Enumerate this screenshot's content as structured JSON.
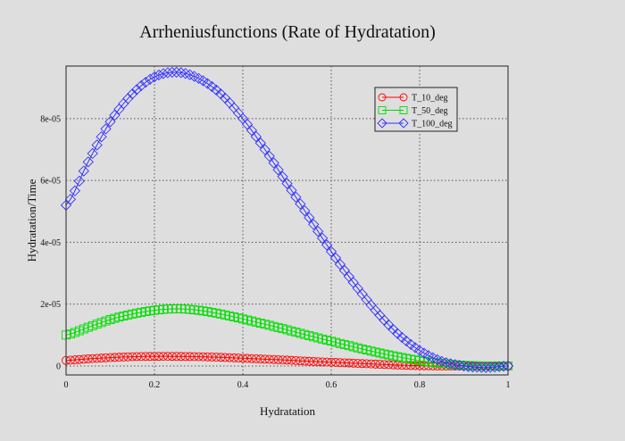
{
  "chart_data": {
    "type": "line",
    "title": "Arrheniusfunctions (Rate of Hydratation)",
    "xlabel": "Hydratation",
    "ylabel": "Hydratation/Time",
    "xlim": [
      0,
      1
    ],
    "ylim": [
      -2.9e-06,
      9.7e-05
    ],
    "grid": true,
    "legend_position": "top-right",
    "x_ticks": [
      {
        "value": 0,
        "label": "0"
      },
      {
        "value": 0.2,
        "label": "0.2"
      },
      {
        "value": 0.4,
        "label": "0.4"
      },
      {
        "value": 0.6,
        "label": "0.6"
      },
      {
        "value": 0.8,
        "label": "0.8"
      },
      {
        "value": 1,
        "label": "1"
      }
    ],
    "y_ticks": [
      {
        "value": 0,
        "label": "0"
      },
      {
        "value": 2e-05,
        "label": "2e-05"
      },
      {
        "value": 4e-05,
        "label": "4e-05"
      },
      {
        "value": 6e-05,
        "label": "6e-05"
      },
      {
        "value": 8e-05,
        "label": "8e-05"
      }
    ],
    "x": [
      0,
      0.05,
      0.1,
      0.15,
      0.2,
      0.25,
      0.3,
      0.35,
      0.4,
      0.45,
      0.5,
      0.55,
      0.6,
      0.65,
      0.7,
      0.75,
      0.8,
      0.85,
      0.9,
      0.95,
      1
    ],
    "series": [
      {
        "name": "T_10_deg",
        "color": "#ff0000",
        "marker": "circle",
        "values": [
          1.8e-06,
          2.3e-06,
          2.7e-06,
          3e-06,
          3.1e-06,
          3.1e-06,
          3e-06,
          2.8e-06,
          2.5e-06,
          2.2e-06,
          1.9e-06,
          1.5e-06,
          1.2e-06,
          9e-07,
          6e-07,
          3e-07,
          1e-07,
          0,
          0,
          0,
          0
        ]
      },
      {
        "name": "T_50_deg",
        "color": "#00dd00",
        "marker": "square",
        "values": [
          1e-05,
          1.25e-05,
          1.5e-05,
          1.68e-05,
          1.8e-05,
          1.85e-05,
          1.8e-05,
          1.68e-05,
          1.52e-05,
          1.35e-05,
          1.17e-05,
          9.8e-06,
          8e-06,
          6.2e-06,
          4.5e-06,
          3e-06,
          1.7e-06,
          8e-07,
          2e-07,
          0,
          0
        ]
      },
      {
        "name": "T_100_deg",
        "color": "#3333ff",
        "marker": "diamond",
        "values": [
          5.2e-05,
          6.6e-05,
          7.9e-05,
          8.8e-05,
          9.35e-05,
          9.5e-05,
          9.3e-05,
          8.8e-05,
          8e-05,
          7e-05,
          5.9e-05,
          4.8e-05,
          3.7e-05,
          2.7e-05,
          1.8e-05,
          1.05e-05,
          5e-06,
          1.5e-06,
          0,
          -5e-07,
          0
        ]
      }
    ]
  }
}
